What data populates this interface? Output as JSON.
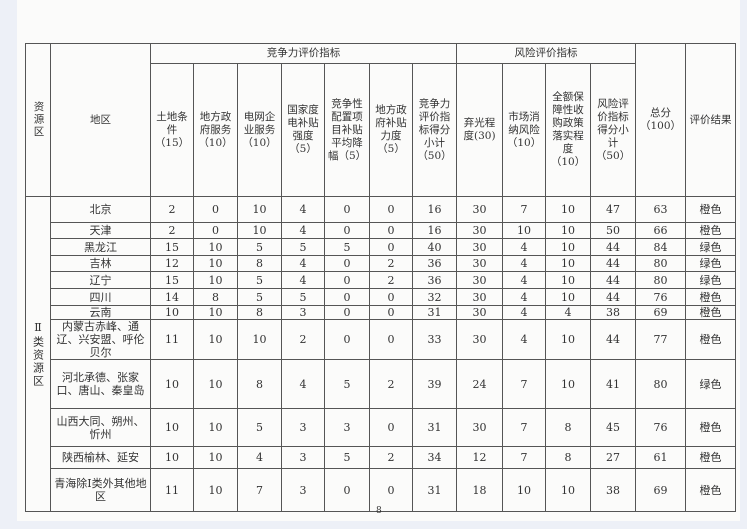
{
  "header": {
    "zone_col": "资源区",
    "region_col": "地区",
    "competitiveness_group": "竞争力评价指标",
    "risk_group": "风险评价指标",
    "competitiveness_cols": [
      "土地条件（15）",
      "地方政府服务（10）",
      "电网企业服务（10）",
      "国家度电补贴强度（5）",
      "竞争性配置项目补贴平均降幅（5）",
      "地方政府补贴力度（5）",
      "竞争力评价指标得分小计（50）"
    ],
    "risk_cols": [
      "弃光程度(30)",
      "市场消纳风险（10）",
      "全额保障性收购政策落实程度（10）",
      "风险评价指标得分小计（50）"
    ],
    "total_col": "总分（100）",
    "result_col": "评价结果"
  },
  "zone_label": "Ⅱ类资源区",
  "rows": [
    {
      "region": "北京",
      "values": [
        "2",
        "0",
        "10",
        "4",
        "0",
        "0",
        "16",
        "30",
        "7",
        "10",
        "47",
        "63"
      ],
      "result": "橙色"
    },
    {
      "region": "天津",
      "values": [
        "2",
        "0",
        "10",
        "4",
        "0",
        "0",
        "16",
        "30",
        "10",
        "10",
        "50",
        "66"
      ],
      "result": "橙色"
    },
    {
      "region": "黑龙江",
      "values": [
        "15",
        "10",
        "5",
        "5",
        "5",
        "0",
        "40",
        "30",
        "4",
        "10",
        "44",
        "84"
      ],
      "result": "绿色"
    },
    {
      "region": "吉林",
      "values": [
        "12",
        "10",
        "8",
        "4",
        "0",
        "2",
        "36",
        "30",
        "4",
        "10",
        "44",
        "80"
      ],
      "result": "绿色"
    },
    {
      "region": "辽宁",
      "values": [
        "15",
        "10",
        "5",
        "4",
        "0",
        "2",
        "36",
        "30",
        "4",
        "10",
        "44",
        "80"
      ],
      "result": "绿色"
    },
    {
      "region": "四川",
      "values": [
        "14",
        "8",
        "5",
        "5",
        "0",
        "0",
        "32",
        "30",
        "4",
        "10",
        "44",
        "76"
      ],
      "result": "橙色"
    },
    {
      "region": "云南",
      "values": [
        "10",
        "10",
        "8",
        "3",
        "0",
        "0",
        "31",
        "30",
        "4",
        "4",
        "38",
        "69"
      ],
      "result": "橙色"
    },
    {
      "region": "内蒙古赤峰、通辽、兴安盟、呼伦贝尔",
      "values": [
        "11",
        "10",
        "10",
        "2",
        "0",
        "0",
        "33",
        "30",
        "4",
        "10",
        "44",
        "77"
      ],
      "result": "橙色"
    },
    {
      "region": "河北承德、张家口、唐山、秦皇岛",
      "values": [
        "10",
        "10",
        "8",
        "4",
        "5",
        "2",
        "39",
        "24",
        "7",
        "10",
        "41",
        "80"
      ],
      "result": "绿色"
    },
    {
      "region": "山西大同、朔州、忻州",
      "values": [
        "10",
        "10",
        "5",
        "3",
        "3",
        "0",
        "31",
        "30",
        "7",
        "8",
        "45",
        "76"
      ],
      "result": "橙色"
    },
    {
      "region": "陕西榆林、延安",
      "values": [
        "10",
        "10",
        "4",
        "3",
        "5",
        "2",
        "34",
        "12",
        "7",
        "8",
        "27",
        "61"
      ],
      "result": "橙色"
    },
    {
      "region": "青海除Ⅰ类外其他地区",
      "values": [
        "11",
        "10",
        "7",
        "3",
        "0",
        "0",
        "31",
        "18",
        "10",
        "10",
        "38",
        "69"
      ],
      "result": "橙色"
    }
  ],
  "page_number": "8"
}
